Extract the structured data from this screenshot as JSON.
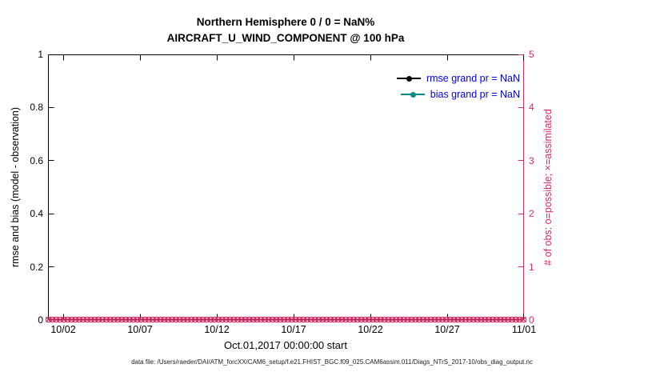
{
  "title": {
    "line1": "Northern Hemisphere 0 / 0 = NaN%",
    "line2": "AIRCRAFT_U_WIND_COMPONENT @ 100 hPa"
  },
  "axes": {
    "left": {
      "label": "rmse and bias (model - observation)",
      "ticks": [
        "0",
        "0.2",
        "0.4",
        "0.6",
        "0.8",
        "1"
      ]
    },
    "right": {
      "label": "# of obs: o=possible; ×=assimilated",
      "ticks": [
        "0",
        "1",
        "2",
        "3",
        "4",
        "5"
      ]
    },
    "x": {
      "ticks": [
        "10/02",
        "10/07",
        "10/12",
        "10/17",
        "10/22",
        "10/27",
        "11/01"
      ],
      "label": "Oct.01,2017 00:00:00 start"
    }
  },
  "legend": [
    {
      "label": "rmse grand pr = NaN",
      "color": "#000000"
    },
    {
      "label": "bias grand pr = NaN",
      "color": "#008b8b"
    }
  ],
  "footer": "data file: /Users/raeder/DAI/ATM_forcXX/CAM6_setup/f.e21.FHIST_BGC.f09_025.CAM6assim.011/Diags_NTrS_2017-10/obs_diag_output.nc",
  "colors": {
    "crimson": "#d23064",
    "teal": "#008b8b",
    "legend_blue": "#0000ee",
    "black": "#000000"
  },
  "chart_data": {
    "type": "line",
    "title": "Northern Hemisphere 0 / 0 = NaN% — AIRCRAFT_U_WIND_COMPONENT @ 100 hPa",
    "x_range": [
      "2017-10-01 00:00:00",
      "2017-11-01 00:00:00"
    ],
    "x_tick_labels": [
      "10/02",
      "10/07",
      "10/12",
      "10/17",
      "10/22",
      "10/27",
      "11/01"
    ],
    "xlabel": "Oct.01,2017 00:00:00 start",
    "left_axis": {
      "label": "rmse and bias (model - observation)",
      "ylim": [
        0,
        1
      ]
    },
    "right_axis": {
      "label": "# of obs: o=possible; ×=assimilated",
      "ylim": [
        0,
        5
      ]
    },
    "grid": false,
    "legend_position": "upper-right-inside",
    "series": [
      {
        "name": "rmse",
        "axis": "left",
        "color": "#000000",
        "marker": "line-dot",
        "values": null,
        "note": "all NaN, nothing plotted"
      },
      {
        "name": "bias",
        "axis": "left",
        "color": "#008b8b",
        "marker": "line-dot",
        "values": null,
        "note": "all NaN, nothing plotted"
      },
      {
        "name": "obs possible",
        "axis": "right",
        "color": "#d23064",
        "marker": "o",
        "value_constant": 0,
        "n_points": 124
      },
      {
        "name": "obs assimilated",
        "axis": "right",
        "color": "#d23064",
        "marker": "x",
        "value_constant": 0,
        "n_points": 124
      }
    ]
  }
}
